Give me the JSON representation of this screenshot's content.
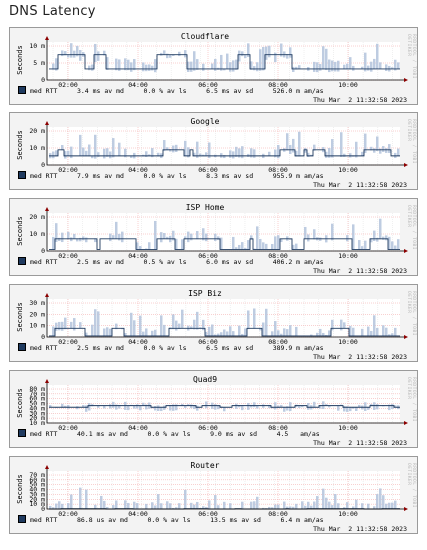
{
  "page_title": "DNS Latency",
  "watermark": "RRDTOOL / TOBI OETIKER",
  "x_ticks": [
    "02:00",
    "04:00",
    "06:00",
    "08:00",
    "10:00"
  ],
  "y_axis_label": "Seconds",
  "colors": {
    "line": "#1f3a5f",
    "band": "#b7c7de",
    "grid_major": "#f1a0a0",
    "grid_minor": "#d8d8d8",
    "axis": "#000000",
    "arrow": "#8b0000"
  },
  "panels": [
    {
      "title": "Cloudflare",
      "y_ticks": [
        "10 m",
        "5 m",
        "0"
      ],
      "legend": {
        "swatch_label": "med RTT",
        "avg": "3.4 ms av md",
        "loss": "0.0 % av ls",
        "sd": "6.5 ms av sd",
        "amas": "526.0 m am/as"
      },
      "timestamp": "Thu Mar  2 11:32:58 2023",
      "chart_data": {
        "type": "area",
        "ylim": [
          0,
          0.012
        ],
        "median_level": [
          0.0035,
          0.008
        ],
        "band_max": 0.012
      }
    },
    {
      "title": "Google",
      "y_ticks": [
        "20 m",
        "10 m",
        "0"
      ],
      "legend": {
        "swatch_label": "med RTT",
        "avg": "7.9 ms av md",
        "loss": "0.0 % av ls",
        "sd": "8.3 ms av sd",
        "amas": "955.9 m am/as"
      },
      "timestamp": "Thu Mar  2 11:32:58 2023",
      "chart_data": {
        "type": "area",
        "ylim": [
          0,
          0.025
        ],
        "median_level": [
          0.006,
          0.01
        ],
        "band_max": 0.022
      }
    },
    {
      "title": "ISP Home",
      "y_ticks": [
        "20 m",
        "10 m",
        "0"
      ],
      "legend": {
        "swatch_label": "med RTT",
        "avg": "2.5 ms av md",
        "loss": "0.5 % av ls",
        "sd": "6.0 ms av sd",
        "amas": "406.2 m am/as"
      },
      "timestamp": "Thu Mar  2 11:32:58 2023",
      "chart_data": {
        "type": "area",
        "ylim": [
          0,
          0.025
        ],
        "median_level": [
          0.001,
          0.008
        ],
        "band_max": 0.022
      }
    },
    {
      "title": "ISP Biz",
      "y_ticks": [
        "30 m",
        "20 m",
        "10 m",
        "0"
      ],
      "legend": {
        "swatch_label": "med RTT",
        "avg": "2.5 ms av md",
        "loss": "0.0 % av ls",
        "sd": "6.5 ms av sd",
        "amas": "389.9 m am/as"
      },
      "timestamp": "Thu Mar  2 11:32:58 2023",
      "chart_data": {
        "type": "area",
        "ylim": [
          0,
          0.035
        ],
        "median_level": [
          0.001,
          0.008
        ],
        "band_max": 0.028
      }
    },
    {
      "title": "Quad9",
      "y_ticks": [
        "80 m",
        "70 m",
        "60 m",
        "50 m",
        "40 m",
        "30 m",
        "20 m",
        "10 m"
      ],
      "legend": {
        "swatch_label": "med RTT",
        "avg": "40.1 ms av md",
        "loss": "0.0 % av ls",
        "sd": "9.0 ms av sd",
        "amas": "4.5   am/as"
      },
      "timestamp": "Thu Mar  2 11:32:58 2023",
      "chart_data": {
        "type": "area",
        "ylim": [
          0.01,
          0.08
        ],
        "median_level": [
          0.039,
          0.042
        ],
        "band_max": 0.05
      }
    },
    {
      "title": "Router",
      "y_ticks": [
        "70 m",
        "60 m",
        "50 m",
        "40 m",
        "30 m",
        "20 m",
        "10 m",
        "0"
      ],
      "legend": {
        "swatch_label": "med RTT",
        "avg": "86.8 us av md",
        "loss": "0.0 % av ls",
        "sd": "13.5 ms av sd",
        "amas": "6.4 m am/as"
      },
      "timestamp": "Thu Mar  2 11:32:58 2023",
      "chart_data": {
        "type": "area",
        "ylim": [
          0,
          0.07
        ],
        "median_level": [
          0.0,
          0.0005
        ],
        "band_max": 0.04
      }
    }
  ]
}
